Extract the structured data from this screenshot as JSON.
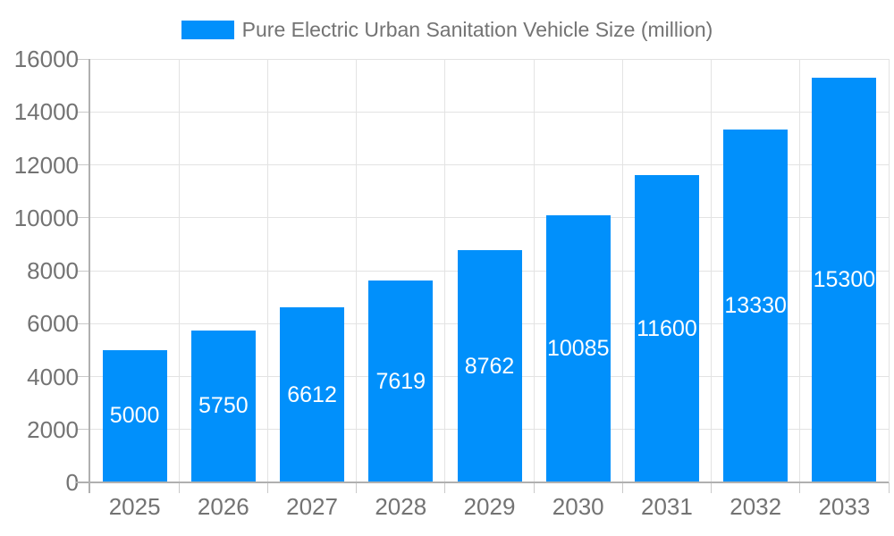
{
  "chart_data": {
    "type": "bar",
    "title": "",
    "legend_label": "Pure Electric Urban Sanitation Vehicle Size (million)",
    "legend_position": "top",
    "categories": [
      "2025",
      "2026",
      "2027",
      "2028",
      "2029",
      "2030",
      "2031",
      "2032",
      "2033"
    ],
    "values": [
      5000,
      5750,
      6612,
      7619,
      8762,
      10085,
      11600,
      13330,
      15300
    ],
    "value_labels": [
      "5000",
      "5750",
      "6612",
      "7619",
      "8762",
      "10085",
      "11600",
      "13330",
      "15300"
    ],
    "xlabel": "",
    "ylabel": "",
    "ylim": [
      0,
      16000
    ],
    "yticks": [
      0,
      2000,
      4000,
      6000,
      8000,
      10000,
      12000,
      14000,
      16000
    ],
    "ytick_labels": [
      "0",
      "2000",
      "4000",
      "6000",
      "8000",
      "10000",
      "12000",
      "14000",
      "16000"
    ],
    "grid": true,
    "colors": {
      "bar": "#0190FB",
      "value_label": "#ffffff",
      "axis_text": "#737373",
      "gridline": "#e3e3e3",
      "axis_line": "#b0b0b0",
      "tick": "#c9c9c9",
      "background": "#ffffff"
    }
  }
}
